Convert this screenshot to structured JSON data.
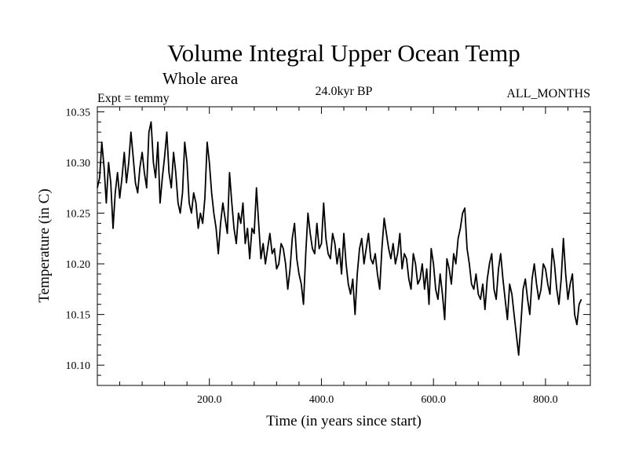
{
  "chart_data": {
    "type": "line",
    "title": "Volume Integral Upper Ocean Temp",
    "subtitle": "Whole area",
    "annotation_left": "Expt = temmy",
    "annotation_center": "24.0kyr BP",
    "annotation_right": "ALL_MONTHS",
    "xlabel": "Time (in years since start)",
    "ylabel": "Temperature (in C)",
    "xlim": [
      0,
      880
    ],
    "ylim": [
      10.08,
      10.355
    ],
    "xticks": [
      200,
      400,
      600,
      800
    ],
    "xtick_labels": [
      "200.0",
      "400.0",
      "600.0",
      "800.0"
    ],
    "yticks": [
      10.1,
      10.15,
      10.2,
      10.25,
      10.3,
      10.35
    ],
    "ytick_labels": [
      "10.10",
      "10.15",
      "10.20",
      "10.25",
      "10.30",
      "10.35"
    ],
    "series": [
      {
        "name": "temperature",
        "x_start": 0,
        "x_step": 4,
        "values": [
          10.275,
          10.285,
          10.32,
          10.295,
          10.26,
          10.3,
          10.28,
          10.235,
          10.27,
          10.29,
          10.265,
          10.285,
          10.31,
          10.28,
          10.3,
          10.33,
          10.305,
          10.28,
          10.27,
          10.295,
          10.31,
          10.29,
          10.275,
          10.33,
          10.34,
          10.3,
          10.285,
          10.32,
          10.26,
          10.285,
          10.305,
          10.33,
          10.29,
          10.275,
          10.31,
          10.29,
          10.26,
          10.25,
          10.27,
          10.32,
          10.3,
          10.26,
          10.25,
          10.27,
          10.26,
          10.235,
          10.25,
          10.24,
          10.265,
          10.32,
          10.3,
          10.27,
          10.25,
          10.235,
          10.21,
          10.24,
          10.26,
          10.245,
          10.23,
          10.29,
          10.26,
          10.235,
          10.22,
          10.25,
          10.24,
          10.26,
          10.22,
          10.235,
          10.205,
          10.235,
          10.23,
          10.275,
          10.24,
          10.205,
          10.22,
          10.2,
          10.215,
          10.23,
          10.21,
          10.215,
          10.195,
          10.2,
          10.22,
          10.215,
          10.2,
          10.175,
          10.195,
          10.225,
          10.24,
          10.205,
          10.19,
          10.18,
          10.16,
          10.21,
          10.25,
          10.23,
          10.215,
          10.21,
          10.24,
          10.215,
          10.22,
          10.26,
          10.225,
          10.21,
          10.205,
          10.23,
          10.22,
          10.2,
          10.215,
          10.19,
          10.23,
          10.2,
          10.18,
          10.17,
          10.185,
          10.15,
          10.19,
          10.215,
          10.225,
          10.2,
          10.215,
          10.23,
          10.205,
          10.2,
          10.21,
          10.19,
          10.175,
          10.215,
          10.245,
          10.23,
          10.215,
          10.205,
          10.22,
          10.2,
          10.21,
          10.23,
          10.195,
          10.21,
          10.205,
          10.185,
          10.175,
          10.21,
          10.2,
          10.18,
          10.185,
          10.2,
          10.175,
          10.195,
          10.16,
          10.215,
          10.2,
          10.175,
          10.165,
          10.19,
          10.17,
          10.145,
          10.205,
          10.195,
          10.18,
          10.21,
          10.2,
          10.225,
          10.235,
          10.25,
          10.255,
          10.215,
          10.2,
          10.18,
          10.175,
          10.19,
          10.17,
          10.165,
          10.18,
          10.155,
          10.185,
          10.2,
          10.21,
          10.175,
          10.165,
          10.195,
          10.21,
          10.185,
          10.165,
          10.145,
          10.18,
          10.17,
          10.15,
          10.13,
          10.11,
          10.14,
          10.175,
          10.185,
          10.165,
          10.15,
          10.185,
          10.2,
          10.18,
          10.165,
          10.175,
          10.2,
          10.195,
          10.18,
          10.17,
          10.215,
          10.2,
          10.175,
          10.16,
          10.185,
          10.225,
          10.19,
          10.165,
          10.18,
          10.19,
          10.15,
          10.14,
          10.16,
          10.165
        ]
      }
    ]
  }
}
